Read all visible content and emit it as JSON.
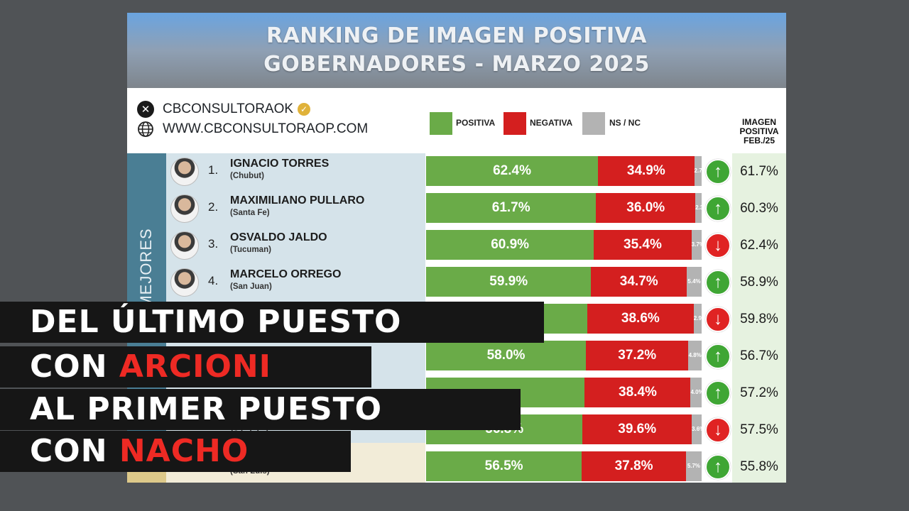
{
  "header": {
    "line1": "RANKING DE IMAGEN POSITIVA",
    "line2": "GOBERNADORES - MARZO 2025"
  },
  "source": {
    "x_handle": "CBCONSULTORAOK",
    "website": "WWW.CBCONSULTORAOP.COM",
    "x_icon": "x-logo-icon",
    "web_icon": "globe-icon",
    "verified_icon": "verified-badge-icon"
  },
  "legend": {
    "positiva": "POSITIVA",
    "negativa": "NEGATIVA",
    "nsnc": "NS / NC"
  },
  "prev_header": [
    "IMAGEN",
    "POSITIVA",
    "FEB./25"
  ],
  "sidebar_label": "MEJORES",
  "colors": {
    "positiva": "#6aab48",
    "negativa": "#d41f1f",
    "nsnc": "#b3b3b3",
    "up": "#3fa634",
    "down": "#e02323",
    "highlight": "#ee2a24"
  },
  "chart_data": {
    "type": "bar",
    "stacked": true,
    "title": "RANKING DE IMAGEN POSITIVA GOBERNADORES - MARZO 2025",
    "series_names": [
      "POSITIVA",
      "NEGATIVA",
      "NS / NC"
    ],
    "rows": [
      {
        "rank": "1.",
        "name": "IGNACIO TORRES",
        "province": "(Chubut)",
        "positiva": 62.4,
        "negativa": 34.9,
        "nsnc": 2.7,
        "trend": "up",
        "prev": 61.7
      },
      {
        "rank": "2.",
        "name": "MAXIMILIANO PULLARO",
        "province": "(Santa Fe)",
        "positiva": 61.7,
        "negativa": 36.0,
        "nsnc": 2.3,
        "trend": "up",
        "prev": 60.3
      },
      {
        "rank": "3.",
        "name": "OSVALDO JALDO",
        "province": "(Tucuman)",
        "positiva": 60.9,
        "negativa": 35.4,
        "nsnc": 3.7,
        "trend": "down",
        "prev": 62.4
      },
      {
        "rank": "4.",
        "name": "MARCELO ORREGO",
        "province": "(San Juan)",
        "positiva": 59.9,
        "negativa": 34.7,
        "nsnc": 5.4,
        "trend": "up",
        "prev": 58.9
      },
      {
        "rank": "",
        "name": "",
        "province": "",
        "positiva": 58.5,
        "negativa": 38.6,
        "nsnc": 2.9,
        "trend": "down",
        "prev": 59.8,
        "pos_label": "",
        "nsnc_label": "2.9"
      },
      {
        "rank": "",
        "name": "",
        "province": "",
        "positiva": 58.0,
        "negativa": 37.2,
        "nsnc": 4.8,
        "trend": "up",
        "prev": 56.7
      },
      {
        "rank": "",
        "name": "",
        "province": "",
        "positiva": 57.6,
        "negativa": 38.4,
        "nsnc": 4.0,
        "trend": "up",
        "prev": 57.2,
        "pos_label": ""
      },
      {
        "rank": "",
        "name": "",
        "province": "(Córdoba)",
        "positiva": 56.8,
        "negativa": 39.6,
        "nsnc": 3.6,
        "trend": "down",
        "prev": 57.5
      },
      {
        "rank": "",
        "name": "",
        "province": "(San Luis)",
        "positiva": 56.5,
        "negativa": 37.8,
        "nsnc": 5.7,
        "trend": "up",
        "prev": 55.8
      }
    ]
  },
  "overlay": {
    "line1": "DEL ÚLTIMO PUESTO",
    "line2_a": "CON ",
    "line2_b": "ARCIONI",
    "line3": "AL PRIMER PUESTO",
    "line4_a": "CON ",
    "line4_b": "NACHO"
  }
}
